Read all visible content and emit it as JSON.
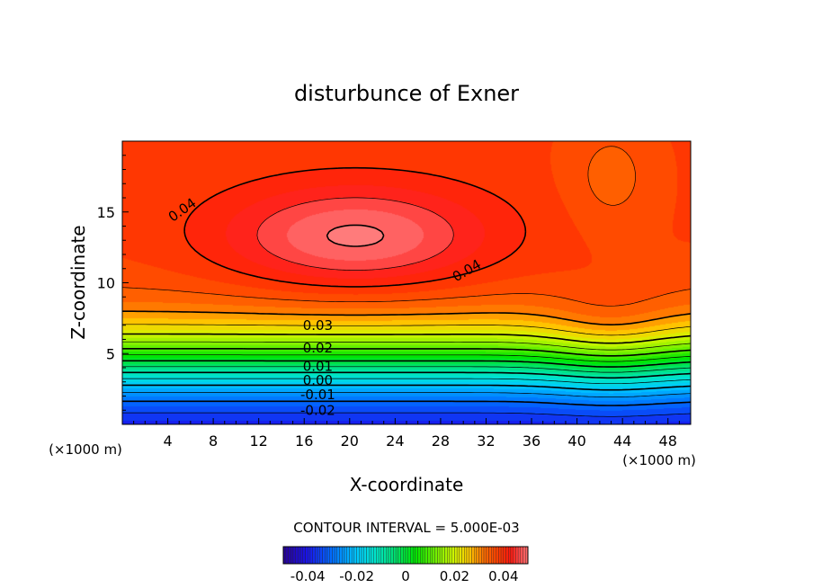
{
  "chart_data": {
    "type": "heatmap",
    "title": "disturbunce of Exner",
    "xlabel": "X-coordinate",
    "ylabel": "Z-coordinate",
    "x_unit": "(×1000 m)",
    "x_unit_right": "(×1000 m)",
    "xlim": [
      0,
      50
    ],
    "ylim": [
      0,
      20
    ],
    "x_ticks": [
      4,
      8,
      12,
      16,
      20,
      24,
      28,
      32,
      36,
      40,
      44,
      48
    ],
    "y_ticks": [
      5,
      10,
      15
    ],
    "contour_interval_text": "CONTOUR INTERVAL = 5.000E-03",
    "contour_interval": 0.005,
    "contour_labels": [
      {
        "text": "0.04",
        "x": 5.5,
        "z": 15.2
      },
      {
        "text": "0.04",
        "x": 30.5,
        "z": 10.9
      },
      {
        "text": "0.03",
        "x": 17.2,
        "z": 7.0
      },
      {
        "text": "0.02",
        "x": 17.2,
        "z": 5.4
      },
      {
        "text": "0.01",
        "x": 17.2,
        "z": 4.1
      },
      {
        "text": "0.00",
        "x": 17.2,
        "z": 3.1
      },
      {
        "text": "-0.01",
        "x": 17.2,
        "z": 2.1
      },
      {
        "text": "-0.02",
        "x": 17.2,
        "z": 1.0
      }
    ],
    "colorbar": {
      "range": [
        -0.05,
        0.05
      ],
      "tick_labels": [
        "-0.04",
        "-0.02",
        "0",
        "0.02",
        "0.04"
      ],
      "tick_values": [
        -0.04,
        -0.02,
        0,
        0.02,
        0.04
      ]
    },
    "max_center": {
      "x": 20.5,
      "z": 13.2,
      "value": 0.05
    },
    "min_value": -0.045,
    "colors": {
      "low": "#1a00c8",
      "mid": "#00e000",
      "high": "#ff0000",
      "peak": "#ff8080"
    }
  }
}
